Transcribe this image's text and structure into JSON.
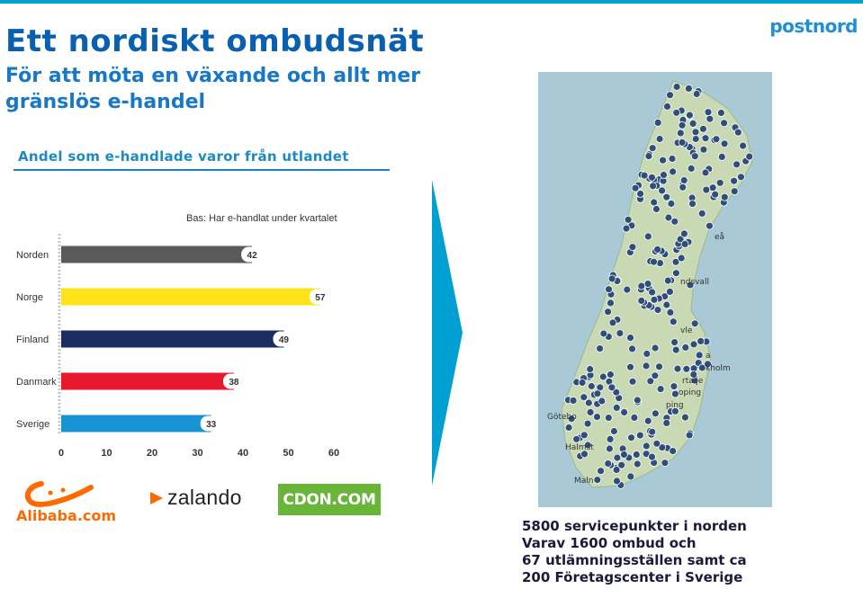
{
  "header": {
    "title": "Ett nordiskt ombudsnät",
    "subtitle": "För att möta en växande och allt mer gränslös e-handel",
    "logo": "postnord"
  },
  "chart_heading": "Andel som e-handlade varor från utlandet",
  "chart_data": {
    "type": "bar",
    "orientation": "horizontal",
    "subtitle": "Bas: Har e-handlat under kvartalet",
    "categories": [
      "Norden",
      "Norge",
      "Finland",
      "Danmark",
      "Sverige"
    ],
    "values": [
      42,
      57,
      49,
      38,
      33
    ],
    "bar_colors": [
      "#5a5a5a",
      "#ffe31a",
      "#1b2d63",
      "#e8192c",
      "#1893d4"
    ],
    "xlim": [
      0,
      60
    ],
    "xticks": [
      0,
      10,
      20,
      30,
      40,
      50,
      60
    ],
    "grid": false
  },
  "map_labels": [
    "eå",
    "ndsvall",
    "vle",
    "a",
    "kholm",
    "rtalje",
    "oping",
    "ping",
    "Götebo",
    "Halmst",
    "Maln"
  ],
  "logos": {
    "alibaba": "Alibaba.com",
    "zalando": "zalando",
    "cdon": "CDON.COM"
  },
  "stats": [
    "5800 servicepunkter i norden",
    "Varav 1600 ombud och",
    "67 utlämningsställen samt ca",
    "200 Företagscenter i Sverige"
  ],
  "colors": {
    "accent": "#0a60b0",
    "arrow": "#00a0d2",
    "map_sea": "#a9c9d6",
    "pin": "#2f4f7a"
  }
}
